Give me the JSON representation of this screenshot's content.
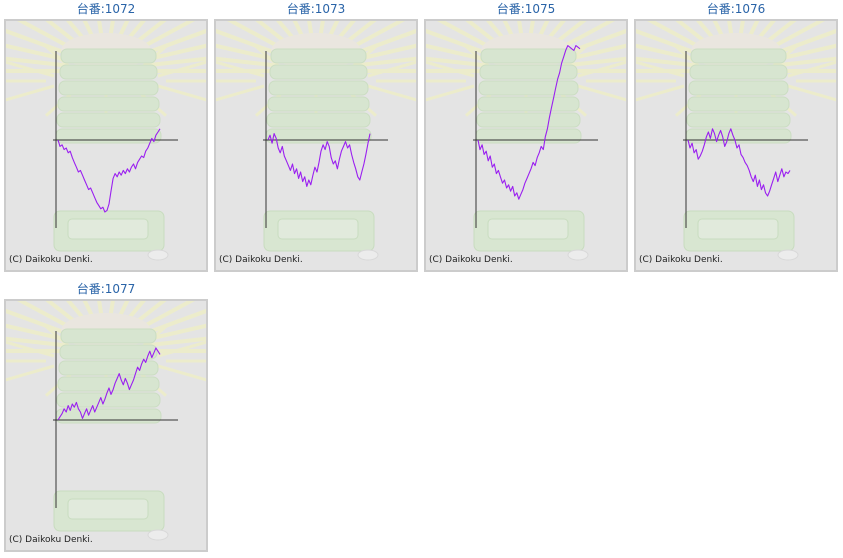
{
  "copyright": "(C) Daikoku Denki.",
  "colors": {
    "title": "#2a64a8",
    "line": "#9a1ff0",
    "axis": "#333333",
    "frame_bg": "#e4e4e4",
    "frame_border": "#cccccc"
  },
  "chart_data": [
    {
      "type": "line",
      "title": "台番:1072",
      "x": [
        0,
        1,
        2,
        3,
        4,
        5,
        6,
        7,
        8,
        9,
        10,
        11,
        12,
        13,
        14,
        15,
        16,
        17,
        18,
        19,
        20,
        21,
        22,
        23,
        24,
        25,
        26,
        27,
        28,
        29,
        30,
        31,
        32,
        33,
        34,
        35,
        36,
        37,
        38,
        39,
        40,
        41,
        42,
        43,
        44,
        45,
        46,
        47,
        48,
        49,
        50
      ],
      "y": [
        0,
        -8,
        -6,
        -12,
        -10,
        -16,
        -14,
        -22,
        -28,
        -34,
        -40,
        -38,
        -44,
        -50,
        -56,
        -62,
        -60,
        -66,
        -72,
        -78,
        -82,
        -86,
        -84,
        -90,
        -88,
        -80,
        -64,
        -48,
        -42,
        -46,
        -40,
        -44,
        -38,
        -42,
        -36,
        -40,
        -34,
        -30,
        -36,
        -28,
        -24,
        -20,
        -22,
        -14,
        -10,
        -4,
        2,
        -2,
        6,
        10,
        14
      ]
    },
    {
      "type": "line",
      "title": "台番:1073",
      "x": [
        0,
        1,
        2,
        3,
        4,
        5,
        6,
        7,
        8,
        9,
        10,
        11,
        12,
        13,
        14,
        15,
        16,
        17,
        18,
        19,
        20,
        21,
        22,
        23,
        24,
        25,
        26,
        27,
        28,
        29,
        30,
        31,
        32,
        33,
        34,
        35,
        36,
        37,
        38,
        39,
        40,
        41,
        42,
        43,
        44,
        45,
        46,
        47,
        48,
        49,
        50
      ],
      "y": [
        0,
        6,
        -4,
        8,
        2,
        -10,
        -16,
        -8,
        -20,
        -26,
        -32,
        -38,
        -30,
        -42,
        -36,
        -48,
        -40,
        -52,
        -46,
        -58,
        -50,
        -56,
        -44,
        -34,
        -40,
        -28,
        -14,
        -6,
        -12,
        -2,
        -8,
        -22,
        -30,
        -26,
        -36,
        -24,
        -14,
        -8,
        -2,
        -10,
        -6,
        -18,
        -28,
        -36,
        -46,
        -50,
        -40,
        -30,
        -18,
        -4,
        8
      ]
    },
    {
      "type": "line",
      "title": "台番:1075",
      "x": [
        0,
        1,
        2,
        3,
        4,
        5,
        6,
        7,
        8,
        9,
        10,
        11,
        12,
        13,
        14,
        15,
        16,
        17,
        18,
        19,
        20,
        21,
        22,
        23,
        24,
        25,
        26,
        27,
        28,
        29,
        30,
        31,
        32,
        33,
        34,
        35,
        36,
        37,
        38,
        39,
        40,
        41,
        42,
        43,
        44,
        45,
        46,
        47,
        48,
        49,
        50
      ],
      "y": [
        0,
        -12,
        -6,
        -18,
        -14,
        -26,
        -20,
        -34,
        -30,
        -42,
        -38,
        -46,
        -54,
        -50,
        -60,
        -56,
        -64,
        -58,
        -70,
        -66,
        -74,
        -68,
        -62,
        -54,
        -48,
        -42,
        -36,
        -28,
        -32,
        -22,
        -16,
        -8,
        -12,
        4,
        14,
        28,
        40,
        52,
        64,
        76,
        84,
        96,
        104,
        112,
        118,
        116,
        114,
        112,
        118,
        116,
        114
      ]
    },
    {
      "type": "line",
      "title": "台番:1076",
      "x": [
        0,
        1,
        2,
        3,
        4,
        5,
        6,
        7,
        8,
        9,
        10,
        11,
        12,
        13,
        14,
        15,
        16,
        17,
        18,
        19,
        20,
        21,
        22,
        23,
        24,
        25,
        26,
        27,
        28,
        29,
        30,
        31,
        32,
        33,
        34,
        35,
        36,
        37,
        38,
        39,
        40,
        41,
        42,
        43,
        44,
        45,
        46,
        47,
        48,
        49,
        50
      ],
      "y": [
        0,
        -10,
        -4,
        -16,
        -12,
        -24,
        -20,
        -14,
        -6,
        4,
        10,
        2,
        14,
        8,
        -2,
        6,
        12,
        4,
        -8,
        -2,
        8,
        14,
        6,
        0,
        -10,
        -6,
        -18,
        -22,
        -28,
        -32,
        -38,
        -46,
        -52,
        -44,
        -58,
        -50,
        -62,
        -56,
        -66,
        -70,
        -64,
        -56,
        -48,
        -40,
        -52,
        -44,
        -36,
        -46,
        -40,
        -42,
        -38
      ]
    },
    {
      "type": "line",
      "title": "台番:1077",
      "x": [
        0,
        1,
        2,
        3,
        4,
        5,
        6,
        7,
        8,
        9,
        10,
        11,
        12,
        13,
        14,
        15,
        16,
        17,
        18,
        19,
        20,
        21,
        22,
        23,
        24,
        25,
        26,
        27,
        28,
        29,
        30,
        31,
        32,
        33,
        34,
        35,
        36,
        37,
        38,
        39,
        40,
        41,
        42,
        43,
        44,
        45,
        46,
        47,
        48,
        49,
        50
      ],
      "y": [
        0,
        4,
        8,
        14,
        10,
        18,
        12,
        20,
        16,
        22,
        14,
        10,
        2,
        8,
        14,
        6,
        12,
        18,
        10,
        16,
        22,
        28,
        20,
        26,
        34,
        40,
        32,
        38,
        46,
        52,
        58,
        50,
        44,
        52,
        46,
        38,
        44,
        50,
        58,
        66,
        62,
        70,
        76,
        72,
        80,
        86,
        78,
        84,
        90,
        86,
        82
      ]
    }
  ]
}
